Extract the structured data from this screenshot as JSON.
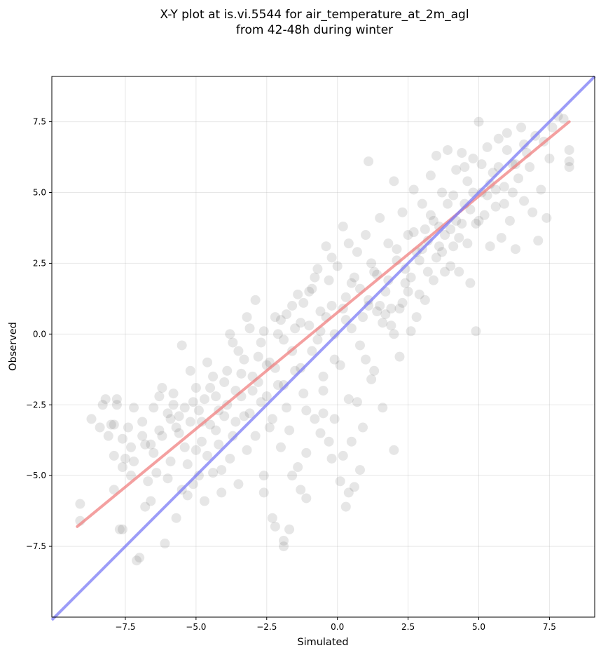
{
  "chart_data": {
    "type": "scatter",
    "title_lines": [
      "X-Y plot at is.vi.5544 for air_temperature_at_2m_agl",
      "from 42-48h during winter"
    ],
    "xlabel": "Simulated",
    "ylabel": "Observed",
    "xlim": [
      -10.1,
      9.1
    ],
    "ylim": [
      -10.0,
      9.1
    ],
    "xticks": [
      -7.5,
      -5.0,
      -2.5,
      0.0,
      2.5,
      5.0,
      7.5
    ],
    "xtick_labels": [
      "−7.5",
      "−5.0",
      "−2.5",
      "0.0",
      "2.5",
      "5.0",
      "7.5"
    ],
    "yticks": [
      -7.5,
      -5.0,
      -2.5,
      0.0,
      2.5,
      5.0,
      7.5
    ],
    "ytick_labels": [
      "−7.5",
      "−5.0",
      "−2.5",
      "0.0",
      "2.5",
      "5.0",
      "7.5"
    ],
    "grid": true,
    "point_color": "#555555",
    "point_opacity": 0.15,
    "fit_line": {
      "color": "#f08080",
      "x": [
        -9.2,
        8.2
      ],
      "y": [
        -6.8,
        7.5
      ]
    },
    "identity_line": {
      "color": "#7b7bf5",
      "x": [
        -10.1,
        9.1
      ],
      "y": [
        -10.1,
        9.1
      ]
    },
    "points": [
      [
        -9.1,
        -6.0
      ],
      [
        -9.1,
        -6.6
      ],
      [
        -8.7,
        -3.0
      ],
      [
        -8.3,
        -2.5
      ],
      [
        -8.2,
        -2.3
      ],
      [
        -8.1,
        -3.6
      ],
      [
        -8.0,
        -3.2
      ],
      [
        -7.9,
        -3.2
      ],
      [
        -7.9,
        -5.5
      ],
      [
        -7.9,
        -4.3
      ],
      [
        -7.8,
        -2.5
      ],
      [
        -7.8,
        -2.3
      ],
      [
        -7.7,
        -6.9
      ],
      [
        -7.6,
        -4.7
      ],
      [
        -7.6,
        -6.9
      ],
      [
        -7.5,
        -4.4
      ],
      [
        -7.4,
        -3.3
      ],
      [
        -7.3,
        -5.0
      ],
      [
        -7.2,
        -2.6
      ],
      [
        -7.1,
        -8.0
      ],
      [
        -7.0,
        -7.9
      ],
      [
        -6.9,
        -3.6
      ],
      [
        -6.8,
        -6.1
      ],
      [
        -6.8,
        -3.9
      ],
      [
        -6.6,
        -5.9
      ],
      [
        -6.5,
        -2.6
      ],
      [
        -6.4,
        -4.9
      ],
      [
        -6.3,
        -3.4
      ],
      [
        -6.2,
        -1.9
      ],
      [
        -6.1,
        -7.4
      ],
      [
        -6.0,
        -2.8
      ],
      [
        -5.9,
        -3.0
      ],
      [
        -5.8,
        -2.1
      ],
      [
        -5.7,
        -6.5
      ],
      [
        -5.6,
        -3.5
      ],
      [
        -5.5,
        -0.4
      ],
      [
        -5.4,
        -2.6
      ],
      [
        -5.3,
        -5.7
      ],
      [
        -5.2,
        -3.1
      ],
      [
        -5.2,
        -1.3
      ],
      [
        -5.1,
        -5.3
      ],
      [
        -5.0,
        -4.1
      ],
      [
        -4.9,
        -2.7
      ],
      [
        -4.8,
        -3.8
      ],
      [
        -4.7,
        -5.9
      ],
      [
        -4.6,
        -1.0
      ],
      [
        -4.5,
        -3.2
      ],
      [
        -4.4,
        -4.9
      ],
      [
        -4.3,
        -2.2
      ],
      [
        -4.2,
        -3.9
      ],
      [
        -4.1,
        -5.6
      ],
      [
        -4.0,
        -1.7
      ],
      [
        -3.9,
        -2.5
      ],
      [
        -3.8,
        -4.4
      ],
      [
        -3.7,
        -0.3
      ],
      [
        -3.6,
        -3.1
      ],
      [
        -3.5,
        -5.3
      ],
      [
        -3.4,
        -1.4
      ],
      [
        -3.3,
        -2.9
      ],
      [
        -3.2,
        -4.1
      ],
      [
        -3.1,
        0.2
      ],
      [
        -3.0,
        -2.0
      ],
      [
        -2.9,
        -3.6
      ],
      [
        -2.8,
        -0.8
      ],
      [
        -2.7,
        -2.4
      ],
      [
        -2.6,
        -5.0
      ],
      [
        -2.5,
        -1.1
      ],
      [
        -2.4,
        -3.3
      ],
      [
        -2.3,
        -6.5
      ],
      [
        -2.2,
        0.6
      ],
      [
        -2.1,
        -1.8
      ],
      [
        -2.0,
        -4.0
      ],
      [
        -1.9,
        -0.2
      ],
      [
        -1.8,
        -2.6
      ],
      [
        -1.7,
        -6.9
      ],
      [
        -1.6,
        1.0
      ],
      [
        -1.5,
        -1.3
      ],
      [
        -1.4,
        -4.7
      ],
      [
        -1.3,
        0.4
      ],
      [
        -1.2,
        -2.1
      ],
      [
        -1.1,
        -5.8
      ],
      [
        -1.0,
        1.5
      ],
      [
        -0.9,
        -0.6
      ],
      [
        -0.8,
        -3.0
      ],
      [
        -0.7,
        2.3
      ],
      [
        -0.6,
        0.1
      ],
      [
        -0.5,
        -1.5
      ],
      [
        -0.4,
        3.1
      ],
      [
        -0.3,
        -3.8
      ],
      [
        -0.2,
        1.0
      ],
      [
        -0.1,
        -0.9
      ],
      [
        0.0,
        2.4
      ],
      [
        0.1,
        -5.2
      ],
      [
        0.2,
        3.8
      ],
      [
        0.3,
        0.5
      ],
      [
        0.4,
        -2.3
      ],
      [
        0.5,
        1.8
      ],
      [
        0.6,
        -5.4
      ],
      [
        0.7,
        2.9
      ],
      [
        0.8,
        -0.4
      ],
      [
        0.9,
        -3.3
      ],
      [
        1.0,
        3.5
      ],
      [
        1.1,
        1.2
      ],
      [
        1.1,
        6.1
      ],
      [
        1.2,
        -1.6
      ],
      [
        1.3,
        2.2
      ],
      [
        1.4,
        0.8
      ],
      [
        1.5,
        4.1
      ],
      [
        1.6,
        -2.6
      ],
      [
        1.7,
        1.5
      ],
      [
        1.8,
        3.2
      ],
      [
        1.9,
        0.3
      ],
      [
        2.0,
        -4.1
      ],
      [
        2.0,
        5.4
      ],
      [
        2.1,
        2.6
      ],
      [
        2.2,
        0.9
      ],
      [
        2.3,
        4.3
      ],
      [
        2.4,
        1.8
      ],
      [
        2.5,
        3.5
      ],
      [
        2.6,
        0.1
      ],
      [
        2.7,
        5.1
      ],
      [
        2.8,
        2.9
      ],
      [
        2.9,
        1.4
      ],
      [
        3.0,
        4.6
      ],
      [
        3.1,
        3.7
      ],
      [
        3.2,
        2.2
      ],
      [
        3.3,
        5.6
      ],
      [
        3.4,
        4.0
      ],
      [
        3.5,
        6.3
      ],
      [
        3.6,
        3.1
      ],
      [
        3.7,
        5.0
      ],
      [
        3.8,
        2.2
      ],
      [
        3.9,
        6.5
      ],
      [
        4.0,
        3.7
      ],
      [
        4.1,
        4.9
      ],
      [
        4.2,
        5.8
      ],
      [
        4.3,
        3.4
      ],
      [
        4.4,
        6.4
      ],
      [
        4.5,
        4.6
      ],
      [
        4.6,
        5.4
      ],
      [
        4.7,
        1.8
      ],
      [
        4.8,
        6.2
      ],
      [
        4.9,
        3.9
      ],
      [
        4.9,
        0.1
      ],
      [
        5.0,
        7.5
      ],
      [
        5.1,
        5.0
      ],
      [
        5.2,
        4.2
      ],
      [
        5.3,
        6.6
      ],
      [
        5.4,
        3.1
      ],
      [
        5.5,
        5.7
      ],
      [
        5.6,
        4.5
      ],
      [
        5.7,
        6.9
      ],
      [
        5.8,
        3.4
      ],
      [
        5.9,
        5.2
      ],
      [
        6.0,
        7.1
      ],
      [
        6.1,
        4.0
      ],
      [
        6.2,
        6.0
      ],
      [
        6.3,
        3.0
      ],
      [
        6.4,
        5.5
      ],
      [
        6.5,
        7.3
      ],
      [
        6.6,
        4.7
      ],
      [
        6.7,
        6.4
      ],
      [
        6.8,
        5.9
      ],
      [
        6.9,
        4.3
      ],
      [
        7.0,
        7.0
      ],
      [
        7.1,
        3.3
      ],
      [
        7.2,
        5.1
      ],
      [
        7.3,
        6.8
      ],
      [
        7.4,
        4.1
      ],
      [
        7.5,
        6.2
      ],
      [
        7.6,
        7.3
      ],
      [
        7.8,
        7.7
      ],
      [
        8.0,
        7.6
      ],
      [
        8.2,
        6.5
      ],
      [
        8.2,
        5.9
      ],
      [
        8.2,
        6.1
      ],
      [
        -6.5,
        -4.2
      ],
      [
        -6.2,
        -3.6
      ],
      [
        -5.9,
        -4.5
      ],
      [
        -5.6,
        -2.9
      ],
      [
        -5.4,
        -4.0
      ],
      [
        -5.1,
        -2.4
      ],
      [
        -4.8,
        -3.1
      ],
      [
        -4.5,
        -1.9
      ],
      [
        -4.2,
        -2.7
      ],
      [
        -3.9,
        -1.3
      ],
      [
        -3.6,
        -2.0
      ],
      [
        -3.3,
        -0.9
      ],
      [
        -3.0,
        -1.5
      ],
      [
        -2.7,
        -0.3
      ],
      [
        -2.4,
        -1.0
      ],
      [
        -2.1,
        0.0
      ],
      [
        -1.8,
        0.7
      ],
      [
        -1.5,
        0.2
      ],
      [
        -1.2,
        1.1
      ],
      [
        -0.9,
        1.6
      ],
      [
        -0.6,
        0.8
      ],
      [
        -0.3,
        1.9
      ],
      [
        0.3,
        1.3
      ],
      [
        0.6,
        2.0
      ],
      [
        0.9,
        0.6
      ],
      [
        1.2,
        2.5
      ],
      [
        1.5,
        1.0
      ],
      [
        1.8,
        1.9
      ],
      [
        2.1,
        3.0
      ],
      [
        2.4,
        2.3
      ],
      [
        2.7,
        3.6
      ],
      [
        3.0,
        3.0
      ],
      [
        3.3,
        4.2
      ],
      [
        3.6,
        3.8
      ],
      [
        3.9,
        4.6
      ],
      [
        4.2,
        4.0
      ],
      [
        4.5,
        5.9
      ],
      [
        4.8,
        5.0
      ],
      [
        5.1,
        6.0
      ],
      [
        5.4,
        5.3
      ],
      [
        5.7,
        5.9
      ],
      [
        6.0,
        6.5
      ],
      [
        6.3,
        6.0
      ],
      [
        6.6,
        6.7
      ],
      [
        -7.3,
        -4.0
      ],
      [
        -6.9,
        -3.1
      ],
      [
        -6.6,
        -3.9
      ],
      [
        -6.0,
        -5.1
      ],
      [
        -5.7,
        -3.3
      ],
      [
        -5.3,
        -4.6
      ],
      [
        -4.9,
        -5.0
      ],
      [
        -4.6,
        -4.3
      ],
      [
        -4.3,
        -3.4
      ],
      [
        -4.0,
        -2.9
      ],
      [
        -3.7,
        -3.6
      ],
      [
        -3.4,
        -2.2
      ],
      [
        -3.1,
        -2.8
      ],
      [
        -2.8,
        -1.7
      ],
      [
        -2.5,
        -2.2
      ],
      [
        -2.2,
        -1.2
      ],
      [
        -1.9,
        -1.8
      ],
      [
        -1.6,
        -0.6
      ],
      [
        -1.3,
        -1.2
      ],
      [
        -1.0,
        0.3
      ],
      [
        -0.7,
        -0.2
      ],
      [
        -0.4,
        0.6
      ],
      [
        -0.1,
        0.0
      ],
      [
        0.2,
        0.9
      ],
      [
        0.5,
        0.2
      ],
      [
        0.8,
        1.6
      ],
      [
        1.1,
        1.0
      ],
      [
        1.4,
        2.1
      ],
      [
        1.7,
        0.7
      ],
      [
        2.0,
        0.0
      ],
      [
        2.3,
        1.1
      ],
      [
        2.6,
        2.0
      ],
      [
        2.9,
        2.6
      ],
      [
        3.2,
        3.3
      ],
      [
        3.5,
        2.7
      ],
      [
        3.8,
        3.5
      ],
      [
        4.1,
        3.1
      ],
      [
        4.4,
        3.9
      ],
      [
        4.7,
        4.4
      ],
      [
        5.0,
        4.0
      ],
      [
        5.3,
        4.9
      ],
      [
        5.6,
        5.1
      ],
      [
        5.9,
        4.6
      ],
      [
        6.2,
        5.0
      ],
      [
        -8.4,
        -3.3
      ],
      [
        -7.6,
        -3.7
      ],
      [
        -7.2,
        -4.5
      ],
      [
        -6.7,
        -5.2
      ],
      [
        -6.3,
        -2.2
      ],
      [
        -5.8,
        -2.5
      ],
      [
        -5.5,
        -5.5
      ],
      [
        -5.0,
        -1.9
      ],
      [
        -4.7,
        -2.3
      ],
      [
        -4.4,
        -1.5
      ],
      [
        -4.1,
        -4.8
      ],
      [
        -3.8,
        0.0
      ],
      [
        -3.5,
        -0.6
      ],
      [
        -3.2,
        0.6
      ],
      [
        -2.9,
        1.2
      ],
      [
        -2.6,
        0.1
      ],
      [
        -2.3,
        -3.0
      ],
      [
        -2.0,
        0.5
      ],
      [
        -1.7,
        -3.4
      ],
      [
        -1.4,
        1.4
      ],
      [
        -1.1,
        -2.7
      ],
      [
        -0.8,
        2.0
      ],
      [
        -0.5,
        -2.0
      ],
      [
        -0.2,
        2.7
      ],
      [
        0.1,
        -1.1
      ],
      [
        0.4,
        3.2
      ],
      [
        0.7,
        -2.4
      ],
      [
        1.0,
        -0.9
      ],
      [
        1.3,
        -1.3
      ],
      [
        1.6,
        0.4
      ],
      [
        1.9,
        0.9
      ],
      [
        2.2,
        -0.8
      ],
      [
        2.5,
        1.5
      ],
      [
        2.8,
        0.6
      ],
      [
        3.1,
        1.2
      ],
      [
        3.4,
        1.9
      ],
      [
        3.7,
        2.9
      ],
      [
        4.0,
        2.4
      ],
      [
        4.3,
        2.2
      ],
      [
        4.6,
        3.2
      ],
      [
        -0.1,
        -3.0
      ],
      [
        0.2,
        -4.3
      ],
      [
        0.5,
        -3.8
      ],
      [
        0.8,
        -4.8
      ],
      [
        0.3,
        -6.1
      ],
      [
        0.4,
        -5.6
      ],
      [
        -0.5,
        -2.8
      ],
      [
        -0.2,
        -4.4
      ],
      [
        -1.6,
        -5.0
      ],
      [
        -1.3,
        -5.5
      ],
      [
        -1.9,
        -7.5
      ],
      [
        -1.9,
        -7.3
      ],
      [
        -2.2,
        -6.8
      ],
      [
        -1.1,
        -4.2
      ],
      [
        -2.6,
        -5.6
      ],
      [
        -0.6,
        -3.5
      ]
    ]
  }
}
